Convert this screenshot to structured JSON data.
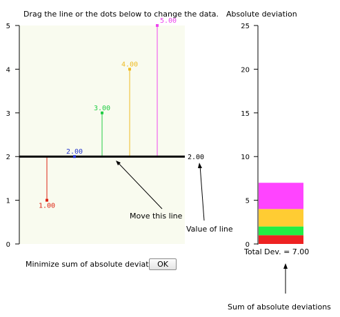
{
  "instructions": "Drag the line or the dots below to change the data.",
  "main_plot": {
    "background": "#f9fbef",
    "y_ticks": [
      "0",
      "1",
      "2",
      "3",
      "4",
      "5"
    ],
    "line_value": 2.0,
    "line_value_label": "2.00",
    "points": [
      {
        "value": 1.0,
        "label": "1.00",
        "color": "#dd2211"
      },
      {
        "value": 2.0,
        "label": "2.00",
        "color": "#2233cc"
      },
      {
        "value": 3.0,
        "label": "3.00",
        "color": "#22cc44"
      },
      {
        "value": 4.0,
        "label": "4.00",
        "color": "#eebb22"
      },
      {
        "value": 5.0,
        "label": "5.00",
        "color": "#ee44ee"
      }
    ]
  },
  "annotations": {
    "move_line": "Move this line",
    "value_of_line": "Value of line",
    "sum_abs_dev": "Sum of absolute deviations"
  },
  "deviation_chart": {
    "title": "Absolute deviation",
    "y_ticks": [
      "0",
      "5",
      "10",
      "15",
      "20",
      "25"
    ],
    "total_label": "Total Dev. = 7.00",
    "segments": [
      {
        "value": 1,
        "color": "#ee2222"
      },
      {
        "value": 1,
        "color": "#22ee44"
      },
      {
        "value": 2,
        "color": "#ffcc33"
      },
      {
        "value": 3,
        "color": "#ff44ff"
      }
    ]
  },
  "controls": {
    "minimize_label": "Minimize sum of absolute deviation",
    "ok_label": "OK"
  }
}
